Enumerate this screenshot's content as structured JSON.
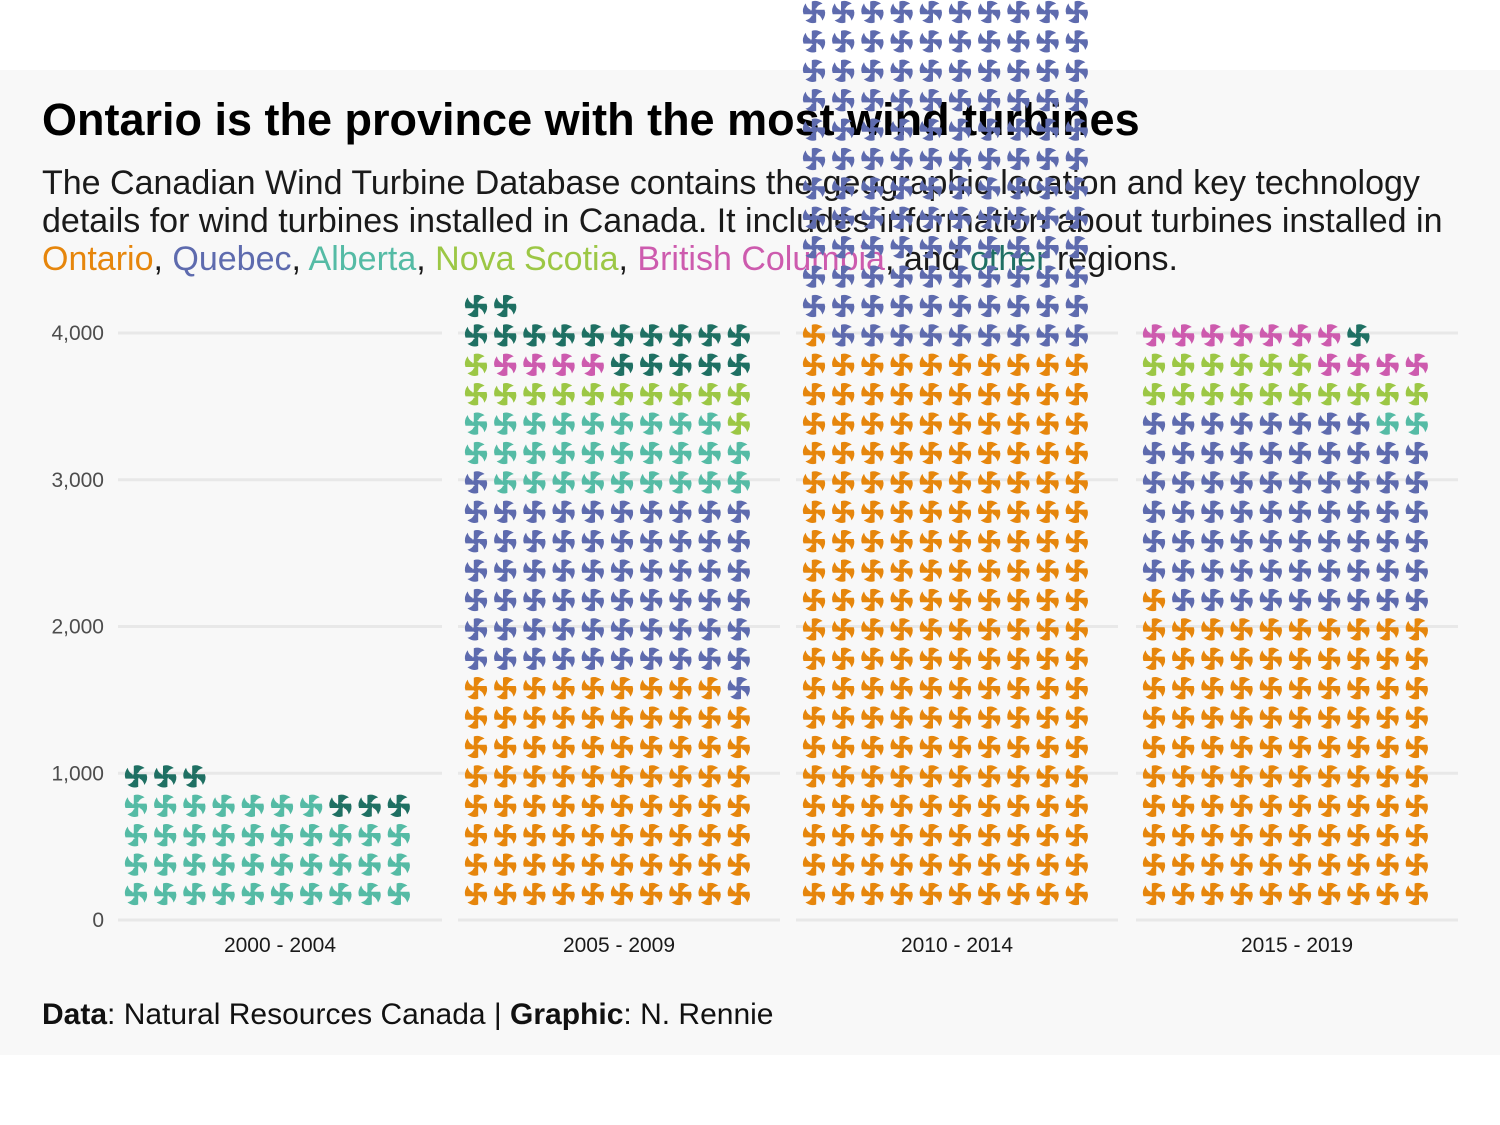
{
  "colors": {
    "Ontario": "#E6860C",
    "Quebec": "#5E6BAE",
    "Alberta": "#55BBA5",
    "Nova Scotia": "#9CC745",
    "British Columbia": "#CD5BAE",
    "other": "#1F7063"
  },
  "subtitle": {
    "intro": "The Canadian Wind Turbine Database contains the geographic location and key technology details for wind turbines installed in Canada. It includes information about turbines installed in ",
    "sep": ", ",
    "and": ", and ",
    "outro": " regions.",
    "names": [
      "Ontario",
      "Quebec",
      "Alberta",
      "Nova Scotia",
      "British Columbia",
      "other"
    ]
  },
  "caption": {
    "data_label": "Data",
    "data_value": ": Natural Resources Canada | ",
    "graphic_label": "Graphic",
    "graphic_value": ": N. Rennie"
  },
  "chart_data": {
    "type": "bar",
    "title": "Ontario is the province with the most wind turbines",
    "xlabel": "",
    "ylabel": "",
    "ylim": [
      0,
      4000
    ],
    "yticks": [
      0,
      1000,
      2000,
      3000,
      4000
    ],
    "ytick_labels": [
      "0",
      "1,000",
      "2,000",
      "3,000",
      "4,000"
    ],
    "grid": true,
    "stacked": true,
    "categories": [
      "2000 - 2004",
      "2005 - 2009",
      "2010 - 2014",
      "2015 - 2019"
    ],
    "series": [
      {
        "name": "Ontario",
        "values": [
          0,
          790,
          1910,
          1010
        ]
      },
      {
        "name": "Quebec",
        "values": [
          0,
          620,
          1190,
          670
        ]
      },
      {
        "name": "Alberta",
        "values": [
          370,
          280,
          690,
          20
        ]
      },
      {
        "name": "Nova Scotia",
        "values": [
          0,
          120,
          250,
          160
        ]
      },
      {
        "name": "British Columbia",
        "values": [
          0,
          40,
          250,
          110
        ]
      },
      {
        "name": "other",
        "values": [
          60,
          170,
          210,
          10
        ]
      }
    ]
  }
}
